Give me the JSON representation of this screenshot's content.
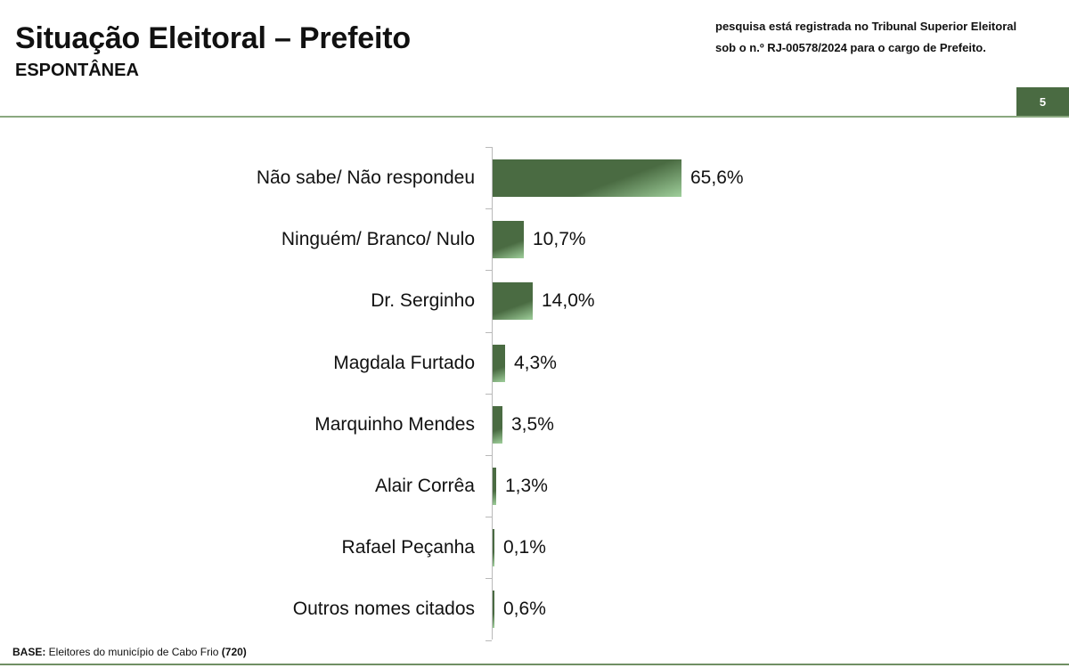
{
  "header": {
    "title": "Situação Eleitoral – Prefeito",
    "subtitle": "ESPONTÂNEA",
    "note_line1": "pesquisa está registrada no Tribunal Superior Eleitoral",
    "note_line2": "sob o n.º RJ-00578/2024 para o cargo de Prefeito.",
    "page_number": "5"
  },
  "footer": {
    "base_label": "BASE:",
    "base_text": " Eleitores do município de Cabo Frio ",
    "base_count": "(720)"
  },
  "colors": {
    "bar": "#4a6b42",
    "bar_highlight": "#9fcf9b",
    "accent_line": "#8aa87f",
    "page_box": "#4a6b42"
  },
  "chart_data": {
    "type": "bar",
    "orientation": "horizontal",
    "title": "Situação Eleitoral – Prefeito",
    "subtitle": "ESPONTÂNEA",
    "xlabel": "",
    "ylabel": "",
    "grid": false,
    "legend": null,
    "categories": [
      "Não sabe/ Não respondeu",
      "Ninguém/ Branco/ Nulo",
      "Dr. Serginho",
      "Magdala Furtado",
      "Marquinho Mendes",
      "Alair Corrêa",
      "Rafael Peçanha",
      "Outros nomes citados"
    ],
    "values": [
      65.6,
      10.7,
      14.0,
      4.3,
      3.5,
      1.3,
      0.1,
      0.6
    ],
    "value_labels": [
      "65,6%",
      "10,7%",
      "14,0%",
      "4,3%",
      "3,5%",
      "1,3%",
      "0,1%",
      "0,6%"
    ],
    "unit": "%",
    "xlim": [
      0,
      100
    ]
  }
}
